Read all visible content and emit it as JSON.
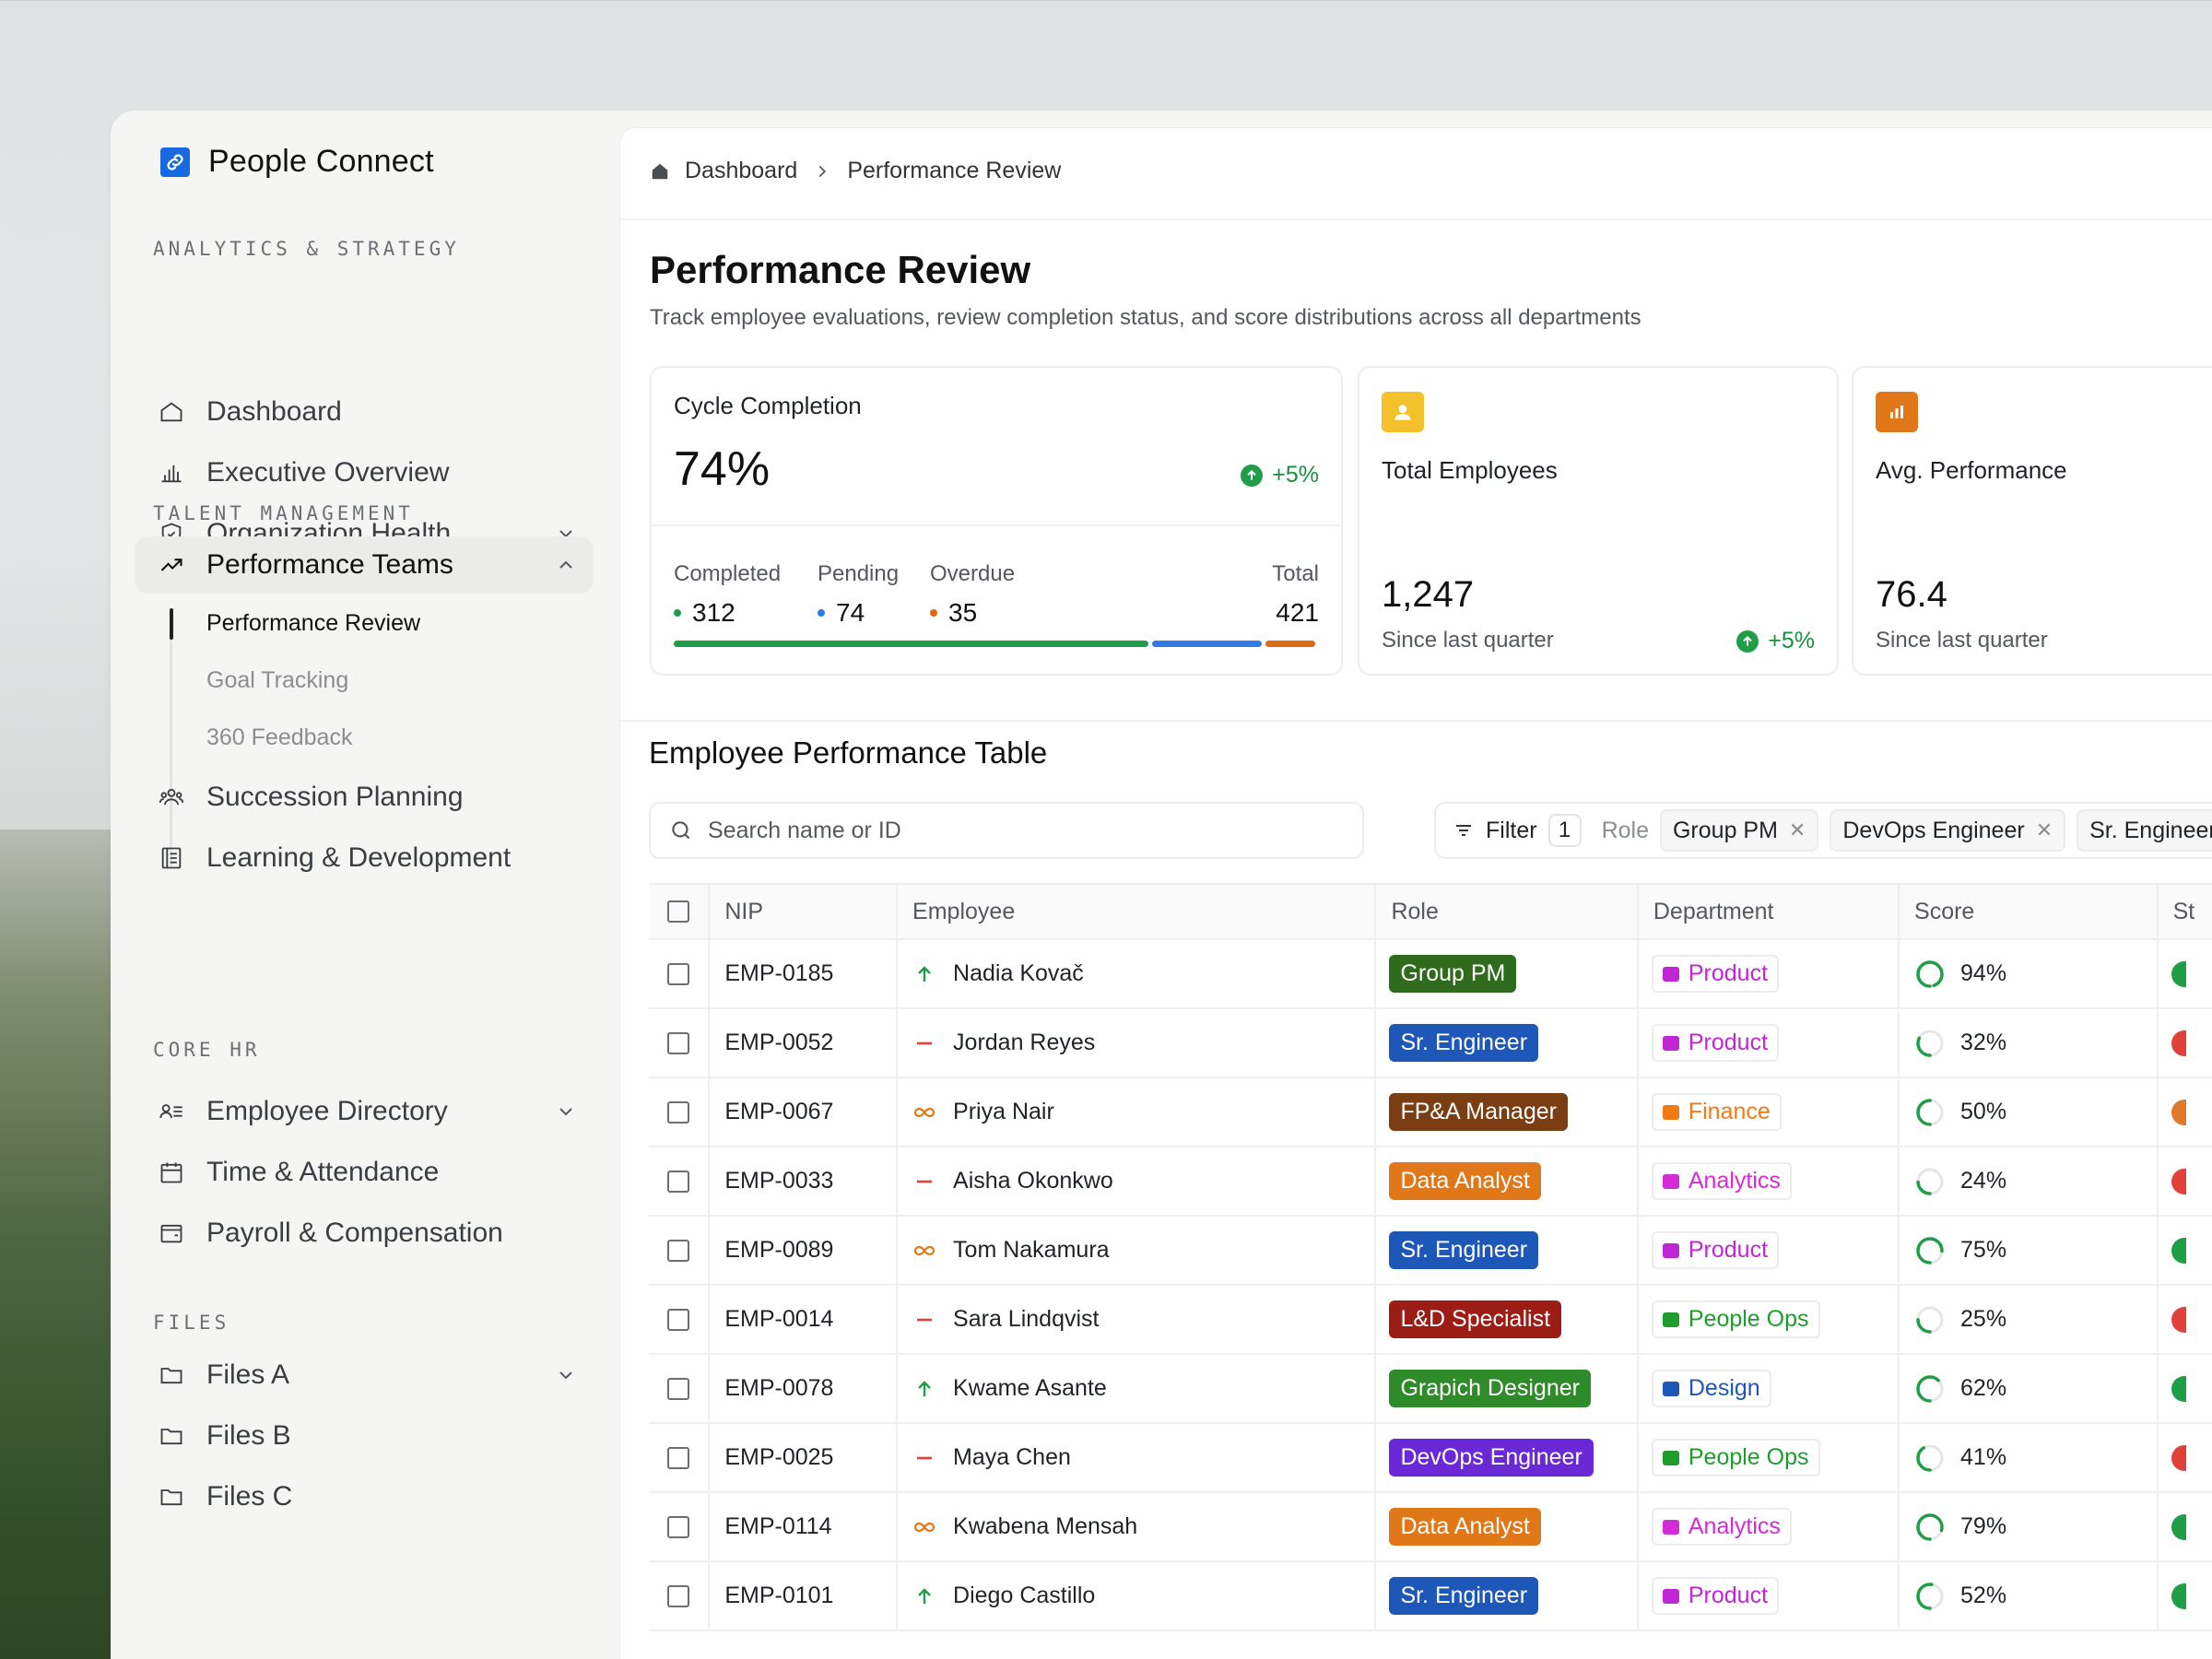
{
  "brand": {
    "name": "People Connect"
  },
  "sidebar": {
    "sections": [
      {
        "title": "ANALYTICS & STRATEGY"
      },
      {
        "title": "TALENT MANAGEMENT"
      },
      {
        "title": "CORE HR"
      },
      {
        "title": "FILES"
      }
    ],
    "items": [
      {
        "label": "Dashboard",
        "icon": "home-icon"
      },
      {
        "label": "Executive Overview",
        "icon": "bar-chart-icon"
      },
      {
        "label": "Organization Health",
        "icon": "shield-icon",
        "expandable": true
      },
      {
        "label": "Performance Teams",
        "icon": "trending-up-icon",
        "expanded": true,
        "active": true
      },
      {
        "label": "Succession Planning",
        "icon": "users-icon"
      },
      {
        "label": "Learning & Development",
        "icon": "book-icon"
      },
      {
        "label": "Employee Directory",
        "icon": "contacts-icon",
        "expandable": true
      },
      {
        "label": "Time & Attendance",
        "icon": "calendar-icon"
      },
      {
        "label": "Payroll & Compensation",
        "icon": "wallet-icon"
      },
      {
        "label": "Files A",
        "icon": "folder-icon",
        "expandable": true
      },
      {
        "label": "Files B",
        "icon": "folder-icon"
      },
      {
        "label": "Files C",
        "icon": "folder-icon"
      }
    ],
    "subitems": [
      {
        "label": "Performance Review",
        "current": true
      },
      {
        "label": "Goal Tracking"
      },
      {
        "label": "360 Feedback"
      }
    ]
  },
  "breadcrumb": {
    "home": "Dashboard",
    "current": "Performance Review"
  },
  "page": {
    "title": "Performance Review",
    "subtitle": "Track employee evaluations, review completion status, and score distributions across all departments"
  },
  "cards": {
    "cycle": {
      "label": "Cycle Completion",
      "value": "74%",
      "delta": "+5%",
      "completed_label": "Completed",
      "completed": "312",
      "pending_label": "Pending",
      "pending": "74",
      "overdue_label": "Overdue",
      "overdue": "35",
      "total_label": "Total",
      "total": "421",
      "colors": {
        "completed": "#1f9d47",
        "pending": "#2f7ae5",
        "overdue": "#e06a12"
      }
    },
    "employees": {
      "label": "Total Employees",
      "value": "1,247",
      "note": "Since last quarter",
      "delta": "+5%"
    },
    "performance": {
      "label": "Avg. Performance",
      "value": "76.4",
      "note": "Since last quarter"
    }
  },
  "table": {
    "title": "Employee Performance Table",
    "search_placeholder": "Search name or ID",
    "filter_label": "Filter",
    "filter_count": "1",
    "role_label": "Role",
    "chips": [
      "Group PM",
      "DevOps Engineer",
      "Sr. Engineer"
    ],
    "columns": [
      "NIP",
      "Employee",
      "Role",
      "Department",
      "Score",
      "St"
    ],
    "rows": [
      {
        "nip": "EMP-0185",
        "name": "Nadia Kovač",
        "trend": "up",
        "role": "Group PM",
        "role_color": "#2f6b1c",
        "dept": "Product",
        "score": "94%",
        "score_value": 94,
        "status_color": "#1f9d47"
      },
      {
        "nip": "EMP-0052",
        "name": "Jordan Reyes",
        "trend": "flat",
        "role": "Sr. Engineer",
        "role_color": "#1d57b8",
        "dept": "Product",
        "score": "32%",
        "score_value": 32,
        "status_color": "#e0413a"
      },
      {
        "nip": "EMP-0067",
        "name": "Priya Nair",
        "trend": "infinite",
        "role": "FP&A Manager",
        "role_color": "#7a3e12",
        "dept": "Finance",
        "score": "50%",
        "score_value": 50,
        "status_color": "#e07a2a"
      },
      {
        "nip": "EMP-0033",
        "name": "Aisha Okonkwo",
        "trend": "flat",
        "role": "Data Analyst",
        "role_color": "#e0781a",
        "dept": "Analytics",
        "score": "24%",
        "score_value": 24,
        "status_color": "#e0413a"
      },
      {
        "nip": "EMP-0089",
        "name": "Tom Nakamura",
        "trend": "infinite",
        "role": "Sr. Engineer",
        "role_color": "#1d57b8",
        "dept": "Product",
        "score": "75%",
        "score_value": 75,
        "status_color": "#1f9d47"
      },
      {
        "nip": "EMP-0014",
        "name": "Sara Lindqvist",
        "trend": "flat",
        "role": "L&D Specialist",
        "role_color": "#9c1c16",
        "dept": "People Ops",
        "score": "25%",
        "score_value": 25,
        "status_color": "#e0413a"
      },
      {
        "nip": "EMP-0078",
        "name": "Kwame Asante",
        "trend": "up",
        "role": "Grapich Designer",
        "role_color": "#2f8a2a",
        "dept": "Design",
        "score": "62%",
        "score_value": 62,
        "status_color": "#1f9d47"
      },
      {
        "nip": "EMP-0025",
        "name": "Maya Chen",
        "trend": "flat",
        "role": "DevOps Engineer",
        "role_color": "#6a28d6",
        "dept": "People Ops",
        "score": "41%",
        "score_value": 41,
        "status_color": "#e0413a"
      },
      {
        "nip": "EMP-0114",
        "name": "Kwabena Mensah",
        "trend": "infinite",
        "role": "Data Analyst",
        "role_color": "#e0781a",
        "dept": "Analytics",
        "score": "79%",
        "score_value": 79,
        "status_color": "#1f9d47"
      },
      {
        "nip": "EMP-0101",
        "name": "Diego Castillo",
        "trend": "up",
        "role": "Sr. Engineer",
        "role_color": "#1d57b8",
        "dept": "Product",
        "score": "52%",
        "score_value": 52,
        "status_color": "#1f9d47"
      }
    ],
    "dept_styles": {
      "Product": {
        "color": "#c026d3"
      },
      "Finance": {
        "color": "#f07a16"
      },
      "Analytics": {
        "color": "#d62ad6"
      },
      "People Ops": {
        "color": "#1f9d2c"
      },
      "Design": {
        "color": "#1d57b8"
      }
    }
  }
}
